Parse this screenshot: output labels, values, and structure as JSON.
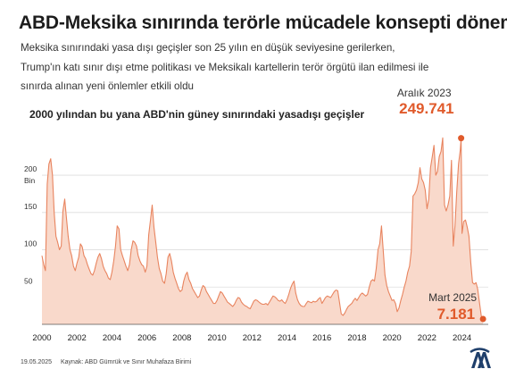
{
  "header": {
    "title": "ABD-Meksika sınırında terörle mücadele konsepti dönemi",
    "subtitle_lines": [
      "Meksika sınırındaki yasa dışı geçişler son 25 yılın en düşük seviyesine gerilerken,",
      "Trump'ın katı sınır dışı etme politikası ve Meksikalı kartellerin terör örgütü ilan edilmesi ile",
      "sınırda alınan yeni önlemler etkili oldu"
    ]
  },
  "footer": {
    "date": "19.05.2025",
    "source": "Kaynak: ABD Gümrük ve Sınır Muhafaza Birimi"
  },
  "colors": {
    "accent": "#e05a2b",
    "area_fill": "#f9d9cb",
    "line": "#e8845f",
    "grid": "#dddddd",
    "logo": "#1f3f6b"
  },
  "logo": {
    "icon": "aa-agency-logo"
  },
  "chart_data": {
    "type": "area",
    "title": "2000 yılından bu yana ABD'nin güney sınırındaki yasadışı geçişler",
    "y_unit_label": "Bin",
    "x_tick_labels": [
      "2000",
      "2002",
      "2004",
      "2006",
      "2008",
      "2010",
      "2012",
      "2014",
      "2016",
      "2018",
      "2020",
      "2022",
      "2024"
    ],
    "y_tick_labels": [
      "50",
      "100",
      "150",
      "200"
    ],
    "ylim": [
      0,
      260
    ],
    "xlim": [
      2000,
      2025.5
    ],
    "grid": true,
    "annotations": [
      {
        "label": "Aralık 2023",
        "value_text": "249.741",
        "x": 2023.95,
        "y": 249.7
      },
      {
        "label": "Mart 2025",
        "value_text": "7.181",
        "x": 2025.2,
        "y": 7.2
      }
    ],
    "series": [
      {
        "points": [
          [
            2000.0,
            92
          ],
          [
            2000.1,
            80
          ],
          [
            2000.2,
            72
          ],
          [
            2000.3,
            188
          ],
          [
            2000.4,
            215
          ],
          [
            2000.5,
            222
          ],
          [
            2000.6,
            200
          ],
          [
            2000.7,
            150
          ],
          [
            2000.8,
            118
          ],
          [
            2000.9,
            110
          ],
          [
            2001.0,
            100
          ],
          [
            2001.1,
            105
          ],
          [
            2001.2,
            152
          ],
          [
            2001.3,
            168
          ],
          [
            2001.4,
            142
          ],
          [
            2001.5,
            118
          ],
          [
            2001.6,
            100
          ],
          [
            2001.7,
            92
          ],
          [
            2001.8,
            78
          ],
          [
            2001.9,
            72
          ],
          [
            2002.0,
            82
          ],
          [
            2002.1,
            90
          ],
          [
            2002.2,
            108
          ],
          [
            2002.3,
            104
          ],
          [
            2002.4,
            92
          ],
          [
            2002.5,
            88
          ],
          [
            2002.6,
            80
          ],
          [
            2002.7,
            74
          ],
          [
            2002.8,
            68
          ],
          [
            2002.9,
            66
          ],
          [
            2003.0,
            72
          ],
          [
            2003.1,
            82
          ],
          [
            2003.2,
            90
          ],
          [
            2003.3,
            95
          ],
          [
            2003.4,
            88
          ],
          [
            2003.5,
            78
          ],
          [
            2003.6,
            72
          ],
          [
            2003.7,
            68
          ],
          [
            2003.8,
            62
          ],
          [
            2003.9,
            60
          ],
          [
            2004.0,
            70
          ],
          [
            2004.1,
            85
          ],
          [
            2004.2,
            105
          ],
          [
            2004.3,
            132
          ],
          [
            2004.4,
            128
          ],
          [
            2004.5,
            100
          ],
          [
            2004.6,
            92
          ],
          [
            2004.7,
            85
          ],
          [
            2004.8,
            78
          ],
          [
            2004.9,
            72
          ],
          [
            2005.0,
            80
          ],
          [
            2005.1,
            100
          ],
          [
            2005.2,
            112
          ],
          [
            2005.3,
            110
          ],
          [
            2005.4,
            105
          ],
          [
            2005.5,
            92
          ],
          [
            2005.6,
            85
          ],
          [
            2005.7,
            80
          ],
          [
            2005.8,
            78
          ],
          [
            2005.9,
            70
          ],
          [
            2006.0,
            78
          ],
          [
            2006.1,
            120
          ],
          [
            2006.2,
            140
          ],
          [
            2006.3,
            160
          ],
          [
            2006.4,
            130
          ],
          [
            2006.5,
            110
          ],
          [
            2006.6,
            90
          ],
          [
            2006.7,
            75
          ],
          [
            2006.8,
            68
          ],
          [
            2006.9,
            58
          ],
          [
            2007.0,
            55
          ],
          [
            2007.1,
            68
          ],
          [
            2007.2,
            90
          ],
          [
            2007.3,
            95
          ],
          [
            2007.4,
            85
          ],
          [
            2007.5,
            70
          ],
          [
            2007.6,
            62
          ],
          [
            2007.7,
            55
          ],
          [
            2007.8,
            48
          ],
          [
            2007.9,
            44
          ],
          [
            2008.0,
            46
          ],
          [
            2008.1,
            58
          ],
          [
            2008.2,
            66
          ],
          [
            2008.3,
            70
          ],
          [
            2008.4,
            60
          ],
          [
            2008.5,
            55
          ],
          [
            2008.6,
            48
          ],
          [
            2008.7,
            44
          ],
          [
            2008.8,
            40
          ],
          [
            2008.9,
            36
          ],
          [
            2009.0,
            38
          ],
          [
            2009.1,
            46
          ],
          [
            2009.2,
            52
          ],
          [
            2009.3,
            50
          ],
          [
            2009.4,
            44
          ],
          [
            2009.5,
            40
          ],
          [
            2009.6,
            36
          ],
          [
            2009.7,
            32
          ],
          [
            2009.8,
            28
          ],
          [
            2009.9,
            28
          ],
          [
            2010.0,
            32
          ],
          [
            2010.1,
            38
          ],
          [
            2010.2,
            44
          ],
          [
            2010.3,
            42
          ],
          [
            2010.4,
            38
          ],
          [
            2010.5,
            34
          ],
          [
            2010.6,
            30
          ],
          [
            2010.7,
            28
          ],
          [
            2010.8,
            26
          ],
          [
            2010.9,
            24
          ],
          [
            2011.0,
            27
          ],
          [
            2011.1,
            32
          ],
          [
            2011.2,
            36
          ],
          [
            2011.3,
            35
          ],
          [
            2011.4,
            30
          ],
          [
            2011.5,
            27
          ],
          [
            2011.6,
            25
          ],
          [
            2011.7,
            24
          ],
          [
            2011.8,
            22
          ],
          [
            2011.9,
            21
          ],
          [
            2012.0,
            26
          ],
          [
            2012.1,
            31
          ],
          [
            2012.2,
            33
          ],
          [
            2012.3,
            32
          ],
          [
            2012.4,
            30
          ],
          [
            2012.5,
            28
          ],
          [
            2012.6,
            27
          ],
          [
            2012.7,
            27
          ],
          [
            2012.8,
            28
          ],
          [
            2012.9,
            26
          ],
          [
            2013.0,
            30
          ],
          [
            2013.1,
            34
          ],
          [
            2013.2,
            38
          ],
          [
            2013.3,
            37
          ],
          [
            2013.4,
            35
          ],
          [
            2013.5,
            32
          ],
          [
            2013.6,
            31
          ],
          [
            2013.7,
            33
          ],
          [
            2013.8,
            30
          ],
          [
            2013.9,
            28
          ],
          [
            2014.0,
            33
          ],
          [
            2014.1,
            40
          ],
          [
            2014.2,
            48
          ],
          [
            2014.3,
            54
          ],
          [
            2014.4,
            58
          ],
          [
            2014.5,
            42
          ],
          [
            2014.6,
            33
          ],
          [
            2014.7,
            28
          ],
          [
            2014.8,
            25
          ],
          [
            2014.9,
            24
          ],
          [
            2015.0,
            24
          ],
          [
            2015.1,
            28
          ],
          [
            2015.2,
            31
          ],
          [
            2015.3,
            30
          ],
          [
            2015.4,
            29
          ],
          [
            2015.5,
            31
          ],
          [
            2015.6,
            30
          ],
          [
            2015.7,
            31
          ],
          [
            2015.8,
            34
          ],
          [
            2015.9,
            36
          ],
          [
            2016.0,
            28
          ],
          [
            2016.1,
            32
          ],
          [
            2016.2,
            36
          ],
          [
            2016.3,
            38
          ],
          [
            2016.4,
            37
          ],
          [
            2016.5,
            36
          ],
          [
            2016.6,
            40
          ],
          [
            2016.7,
            44
          ],
          [
            2016.8,
            46
          ],
          [
            2016.9,
            45
          ],
          [
            2017.0,
            30
          ],
          [
            2017.1,
            14
          ],
          [
            2017.2,
            12
          ],
          [
            2017.3,
            15
          ],
          [
            2017.4,
            20
          ],
          [
            2017.5,
            24
          ],
          [
            2017.6,
            26
          ],
          [
            2017.7,
            28
          ],
          [
            2017.8,
            32
          ],
          [
            2017.9,
            35
          ],
          [
            2018.0,
            32
          ],
          [
            2018.1,
            36
          ],
          [
            2018.2,
            40
          ],
          [
            2018.3,
            42
          ],
          [
            2018.4,
            40
          ],
          [
            2018.5,
            38
          ],
          [
            2018.6,
            40
          ],
          [
            2018.7,
            50
          ],
          [
            2018.8,
            58
          ],
          [
            2018.9,
            60
          ],
          [
            2019.0,
            58
          ],
          [
            2019.1,
            75
          ],
          [
            2019.2,
            100
          ],
          [
            2019.3,
            108
          ],
          [
            2019.4,
            132
          ],
          [
            2019.5,
            98
          ],
          [
            2019.6,
            66
          ],
          [
            2019.7,
            52
          ],
          [
            2019.8,
            44
          ],
          [
            2019.9,
            38
          ],
          [
            2020.0,
            32
          ],
          [
            2020.1,
            33
          ],
          [
            2020.2,
            28
          ],
          [
            2020.3,
            17
          ],
          [
            2020.4,
            22
          ],
          [
            2020.5,
            32
          ],
          [
            2020.6,
            40
          ],
          [
            2020.7,
            50
          ],
          [
            2020.8,
            58
          ],
          [
            2020.9,
            70
          ],
          [
            2021.0,
            78
          ],
          [
            2021.1,
            98
          ],
          [
            2021.2,
            172
          ],
          [
            2021.3,
            175
          ],
          [
            2021.4,
            180
          ],
          [
            2021.5,
            190
          ],
          [
            2021.6,
            210
          ],
          [
            2021.7,
            195
          ],
          [
            2021.8,
            190
          ],
          [
            2021.9,
            180
          ],
          [
            2022.0,
            155
          ],
          [
            2022.1,
            168
          ],
          [
            2022.2,
            210
          ],
          [
            2022.3,
            225
          ],
          [
            2022.4,
            240
          ],
          [
            2022.5,
            200
          ],
          [
            2022.6,
            205
          ],
          [
            2022.7,
            225
          ],
          [
            2022.8,
            232
          ],
          [
            2022.9,
            250
          ],
          [
            2023.0,
            160
          ],
          [
            2023.1,
            152
          ],
          [
            2023.2,
            160
          ],
          [
            2023.3,
            172
          ],
          [
            2023.4,
            220
          ],
          [
            2023.5,
            105
          ],
          [
            2023.6,
            132
          ],
          [
            2023.7,
            178
          ],
          [
            2023.8,
            215
          ],
          [
            2023.9,
            233
          ],
          [
            2023.95,
            249.7
          ],
          [
            2024.0,
            122
          ],
          [
            2024.1,
            138
          ],
          [
            2024.2,
            140
          ],
          [
            2024.3,
            130
          ],
          [
            2024.4,
            118
          ],
          [
            2024.5,
            83
          ],
          [
            2024.6,
            56
          ],
          [
            2024.7,
            54
          ],
          [
            2024.8,
            56
          ],
          [
            2024.9,
            47
          ],
          [
            2025.0,
            29
          ],
          [
            2025.1,
            11
          ],
          [
            2025.2,
            7.2
          ]
        ]
      }
    ]
  }
}
